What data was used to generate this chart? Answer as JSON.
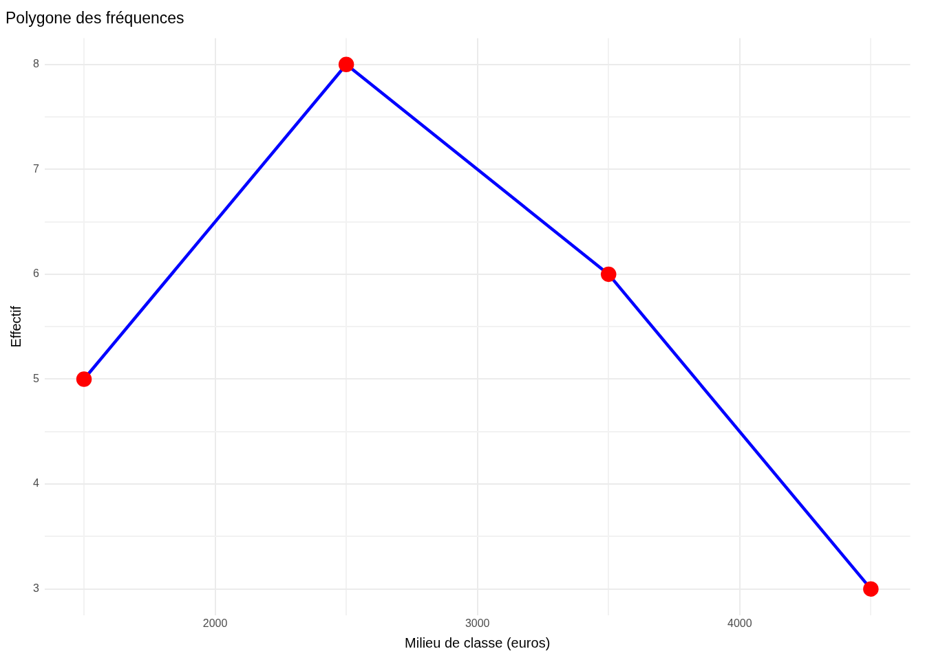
{
  "chart_data": {
    "type": "line",
    "title": "Polygone des fréquences",
    "xlabel": "Milieu de classe (euros)",
    "ylabel": "Effectif",
    "x": [
      1500,
      2500,
      3500,
      4500
    ],
    "series": [
      {
        "color": "#0000ff",
        "colors": [
          "#ff0000",
          "#ff0000",
          "#ff0000",
          "#ff0000"
        ],
        "values": [
          5,
          8,
          6,
          3
        ]
      }
    ],
    "marker": "circle",
    "line_style": "solid",
    "grid": true,
    "legend": false,
    "xlim": [
      1350,
      4650
    ],
    "xticks": [
      {
        "value": 1500,
        "label": null
      },
      2000,
      {
        "value": 2500,
        "label": null
      },
      3000,
      {
        "value": 3500,
        "label": null
      },
      4000,
      {
        "value": 4500,
        "label": null
      }
    ],
    "ylim": [
      2.75,
      8.25
    ],
    "yticks": [
      3,
      {
        "value": 3.5,
        "label": null
      },
      4,
      {
        "value": 4.5,
        "label": null
      },
      5,
      {
        "value": 5.5,
        "label": null
      },
      6,
      {
        "value": 6.5,
        "label": null
      },
      7,
      {
        "value": 7.5,
        "label": null
      },
      8
    ]
  }
}
